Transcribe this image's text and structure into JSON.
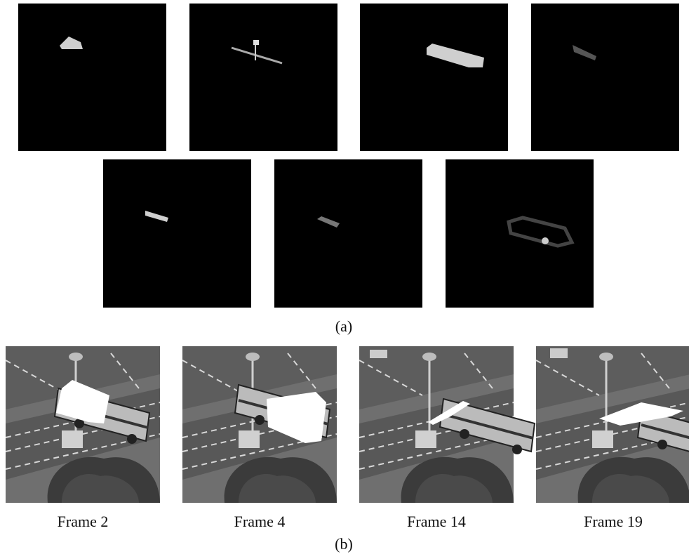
{
  "figure": {
    "panel_a_label": "(a)",
    "panel_b_label": "(b)",
    "frames": [
      "Frame 2",
      "Frame 4",
      "Frame 14",
      "Frame 19"
    ]
  }
}
